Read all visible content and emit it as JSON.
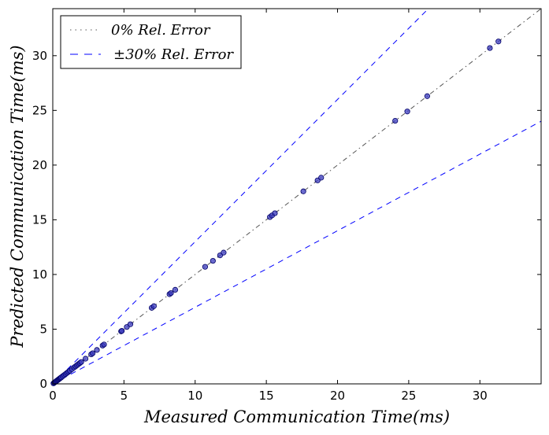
{
  "chart_data": {
    "type": "scatter",
    "title": "",
    "xlabel": "Measured Communication Time(ms)",
    "ylabel": "Predicted Communication Time(ms)",
    "xlim": [
      0,
      34.3
    ],
    "ylim": [
      0,
      34.3
    ],
    "xticks": [
      "0",
      "5",
      "10",
      "15",
      "20",
      "25",
      "30"
    ],
    "yticks": [
      "0",
      "5",
      "10",
      "15",
      "20",
      "25",
      "30"
    ],
    "grid": false,
    "legend_position": "top-left",
    "colors": {
      "reference": "#555555",
      "bounds": "#0000ff",
      "points_fill": "#3b3bbf",
      "points_edge": "#000066"
    },
    "legend": [
      {
        "label": "0% Rel. Error",
        "style": "dashdot",
        "color": "#555555"
      },
      {
        "label": "±30% Rel. Error",
        "style": "dashed",
        "color": "#0000ff"
      }
    ],
    "reference_lines": [
      {
        "name": "0% Rel. Error",
        "slope": 1.0
      },
      {
        "name": "+30% Rel. Error",
        "slope": 1.3
      },
      {
        "name": "-30% Rel. Error",
        "slope": 0.7
      }
    ],
    "points": {
      "x": [
        0.05,
        0.1,
        0.15,
        0.2,
        0.25,
        0.3,
        0.35,
        0.4,
        0.45,
        0.5,
        0.55,
        0.6,
        0.7,
        0.8,
        0.9,
        1.0,
        1.1,
        1.2,
        1.35,
        1.5,
        1.6,
        1.7,
        1.8,
        1.9,
        2.0,
        2.3,
        2.7,
        2.8,
        3.1,
        3.5,
        3.6,
        4.8,
        4.85,
        5.2,
        5.45,
        6.95,
        7.1,
        8.2,
        8.3,
        8.6,
        10.7,
        11.25,
        11.75,
        12.0,
        15.25,
        15.4,
        15.6,
        17.6,
        18.6,
        18.85,
        24.05,
        24.9,
        26.3,
        30.7,
        31.3
      ],
      "y": [
        0.05,
        0.1,
        0.15,
        0.2,
        0.25,
        0.3,
        0.35,
        0.4,
        0.45,
        0.5,
        0.55,
        0.6,
        0.7,
        0.8,
        0.9,
        1.0,
        1.1,
        1.2,
        1.35,
        1.5,
        1.6,
        1.7,
        1.8,
        1.9,
        2.0,
        2.3,
        2.7,
        2.8,
        3.1,
        3.5,
        3.6,
        4.8,
        4.85,
        5.2,
        5.45,
        6.95,
        7.1,
        8.2,
        8.3,
        8.6,
        10.7,
        11.25,
        11.75,
        12.0,
        15.25,
        15.4,
        15.6,
        17.6,
        18.6,
        18.85,
        24.05,
        24.9,
        26.3,
        30.7,
        31.3
      ]
    }
  }
}
